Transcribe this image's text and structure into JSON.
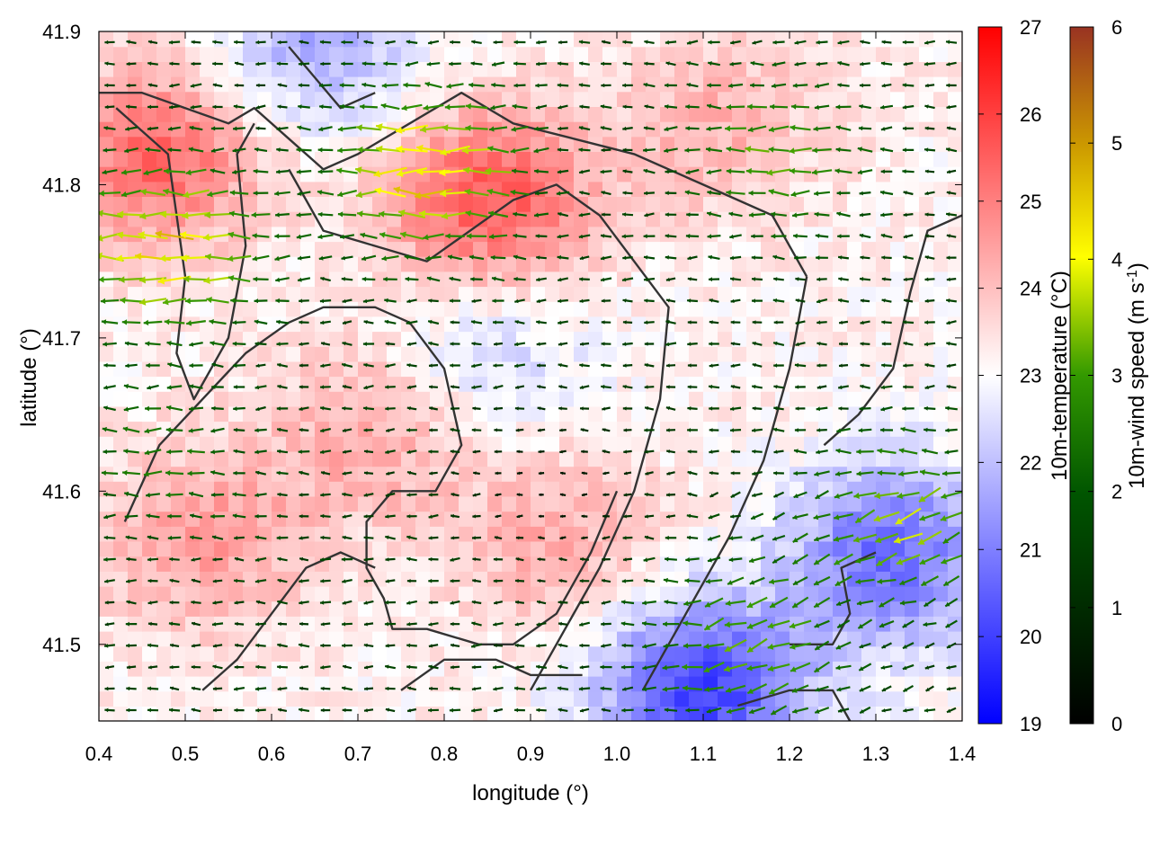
{
  "chart_data": {
    "type": "heatmap",
    "title": "",
    "xlabel": "longitude (°)",
    "ylabel": "latitude (°)",
    "xlim": [
      0.4,
      1.4
    ],
    "ylim": [
      41.45,
      41.9
    ],
    "xticks": [
      "0.4",
      "0.5",
      "0.6",
      "0.7",
      "0.8",
      "0.9",
      "1.0",
      "1.1",
      "1.2",
      "1.3",
      "1.4"
    ],
    "yticks": [
      "41.5",
      "41.6",
      "41.7",
      "41.8",
      "41.9"
    ],
    "colorbars": [
      {
        "label": "10m-temperature (°C)",
        "range": [
          19,
          27
        ],
        "ticks": [
          "19",
          "20",
          "21",
          "22",
          "23",
          "24",
          "25",
          "26",
          "27"
        ],
        "colors": [
          "#0000ff",
          "#ffffff",
          "#ff0000"
        ]
      },
      {
        "label_main": "10m-wind speed (m s",
        "label_sup": "-1",
        "label_end": ")",
        "range": [
          0,
          6
        ],
        "ticks": [
          "0",
          "1",
          "2",
          "3",
          "4",
          "5",
          "6"
        ],
        "colors": [
          "#000000",
          "#005500",
          "#339900",
          "#ffff00",
          "#cc9900",
          "#993322"
        ]
      }
    ],
    "temperature_regions": [
      {
        "lon": 0.47,
        "lat": 41.82,
        "dt": 2.2
      },
      {
        "lon": 0.85,
        "lat": 41.79,
        "dt": 2.5
      },
      {
        "lon": 0.72,
        "lat": 41.64,
        "dt": 1.2
      },
      {
        "lon": 0.52,
        "lat": 41.57,
        "dt": 1.4
      },
      {
        "lon": 1.12,
        "lat": 41.84,
        "dt": 1.0
      },
      {
        "lon": 0.93,
        "lat": 41.57,
        "dt": 1.1
      },
      {
        "lon": 1.1,
        "lat": 41.47,
        "dt": -3.2
      },
      {
        "lon": 1.32,
        "lat": 41.56,
        "dt": -2.5
      },
      {
        "lon": 0.65,
        "lat": 41.89,
        "dt": -1.5
      },
      {
        "lon": 0.85,
        "lat": 41.69,
        "dt": -1.0
      }
    ],
    "wind_regions": [
      {
        "lon": 0.48,
        "lat": 41.76,
        "speed": 4.0
      },
      {
        "lon": 0.78,
        "lat": 41.81,
        "speed": 4.2
      },
      {
        "lon": 1.18,
        "lat": 41.82,
        "speed": 2.4
      },
      {
        "lon": 1.33,
        "lat": 41.58,
        "speed": 3.0
      },
      {
        "lon": 1.15,
        "lat": 41.5,
        "speed": 2.8
      },
      {
        "lon": 0.47,
        "lat": 41.62,
        "speed": 1.8
      },
      {
        "lon": 0.92,
        "lat": 41.6,
        "speed": 0.3
      }
    ]
  }
}
